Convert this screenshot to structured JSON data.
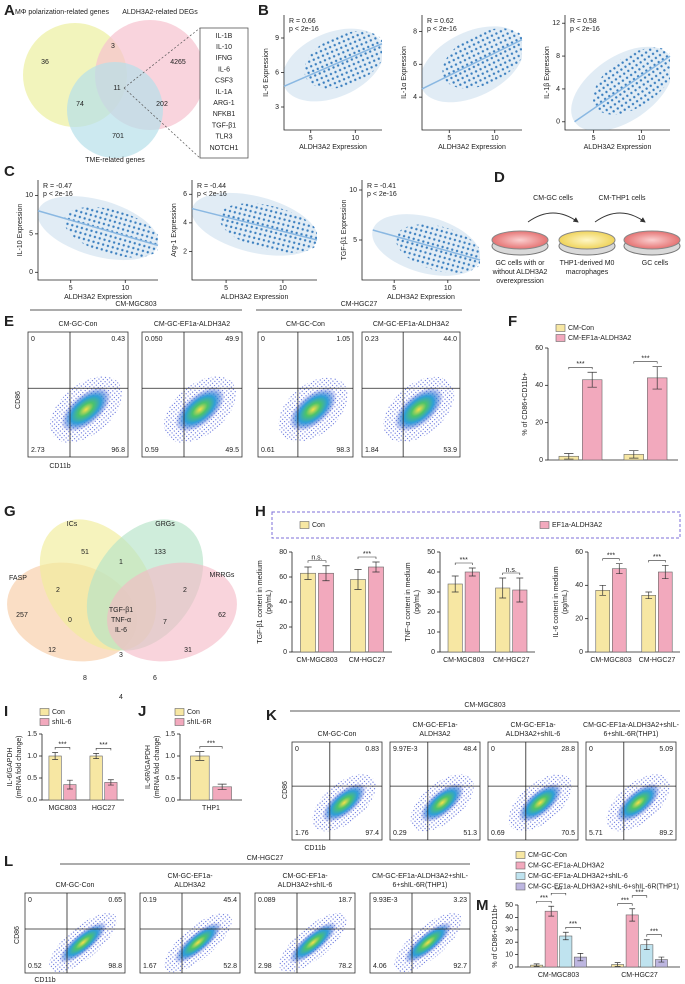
{
  "A": {
    "letter": "A",
    "sets": [
      "MΦ polarization-related genes",
      "ALDH3A2-related DEGs",
      "TME-related genes"
    ],
    "counts": [
      36,
      3,
      4265,
      74,
      11,
      202,
      701
    ],
    "genes": [
      "IL-1B",
      "IL-10",
      "IFNG",
      "IL-6",
      "CSF3",
      "IL-1A",
      "ARG-1",
      "NFKB1",
      "TGF-β1",
      "TLR3",
      "NOTCH1"
    ],
    "gene_colors": [
      "#e8262a",
      "#e8262a",
      "#222",
      "#e8262a",
      "#222",
      "#e8262a",
      "#e8262a",
      "#222",
      "#e8262a",
      "#222",
      "#222"
    ]
  },
  "B": {
    "letter": "B",
    "plots": [
      {
        "stat": [
          "R = 0.66",
          "p < 2e-16"
        ],
        "ylabel": "IL-6 Expression",
        "xlabel": "ALDH3A2 Expression",
        "xlim": [
          2,
          13
        ],
        "ylim": [
          1,
          11
        ],
        "xticks": [
          5,
          10
        ],
        "yticks": [
          3,
          6,
          9
        ],
        "fit": [
          [
            2,
            4.8
          ],
          [
            13,
            8.5
          ]
        ]
      },
      {
        "stat": [
          "R = 0.62",
          "p < 2e-16"
        ],
        "ylabel": "IL-1α Expression",
        "xlabel": "ALDH3A2 Expression",
        "xlim": [
          2,
          13
        ],
        "ylim": [
          2,
          9
        ],
        "xticks": [
          5,
          10
        ],
        "yticks": [
          4,
          6,
          8
        ],
        "fit": [
          [
            2,
            4.5
          ],
          [
            13,
            7.5
          ]
        ]
      },
      {
        "stat": [
          "R = 0.58",
          "p < 2e-16"
        ],
        "ylabel": "IL-1β Expression",
        "xlabel": "ALDH3A2 Expression",
        "xlim": [
          2,
          13
        ],
        "ylim": [
          -1,
          13
        ],
        "xticks": [
          5,
          10
        ],
        "yticks": [
          0,
          4,
          8,
          12
        ],
        "fit": [
          [
            3,
            0
          ],
          [
            13,
            8
          ]
        ]
      }
    ]
  },
  "C": {
    "letter": "C",
    "plots": [
      {
        "stat": [
          "R = -0.47",
          "p < 2e-16"
        ],
        "ylabel": "IL-10 Expression",
        "xlabel": "ALDH3A2 Expression",
        "xlim": [
          2,
          13
        ],
        "ylim": [
          -1,
          12
        ],
        "xticks": [
          5,
          10
        ],
        "yticks": [
          0,
          5,
          10
        ],
        "fit": [
          [
            2,
            8
          ],
          [
            13,
            3.5
          ]
        ]
      },
      {
        "stat": [
          "R = -0.44",
          "p < 2e-16"
        ],
        "ylabel": "Arg-1 Expression",
        "xlabel": "ALDH3A2 Expression",
        "xlim": [
          2,
          13
        ],
        "ylim": [
          0,
          7
        ],
        "xticks": [
          5,
          10
        ],
        "yticks": [
          2,
          4,
          6
        ],
        "fit": [
          [
            2,
            5
          ],
          [
            13,
            2.8
          ]
        ]
      },
      {
        "stat": [
          "R = -0.41",
          "p < 2e-16"
        ],
        "ylabel": "TGF-β1 Expression",
        "xlabel": "ALDH3A2 Expression",
        "xlim": [
          2,
          13
        ],
        "ylim": [
          1,
          11
        ],
        "xticks": [
          5,
          10
        ],
        "yticks": [
          5,
          10
        ],
        "fit": [
          [
            3,
            6
          ],
          [
            13,
            3
          ]
        ]
      }
    ]
  },
  "D": {
    "letter": "D",
    "steps": [
      "CM-GC cells",
      "CM-THP1 cells"
    ],
    "dish_labels": [
      [
        "GC cells with or",
        "without ALDH3A2",
        "overexpression"
      ],
      [
        "THP1-derived M0",
        "macrophages"
      ],
      [
        "GC cells"
      ]
    ]
  },
  "E": {
    "letter": "E",
    "groups": [
      "CM-MGC803",
      "CM-HGC27"
    ],
    "ylabel": "CD86",
    "xlabel": "CD11b",
    "plots": [
      {
        "title": [
          "CM-GC-Con"
        ],
        "q": [
          "0",
          "0.43",
          "2.73",
          "96.8"
        ]
      },
      {
        "title": [
          "CM-GC-EF1a-ALDH3A2"
        ],
        "q": [
          "0.050",
          "49.9",
          "0.59",
          "49.5"
        ]
      },
      {
        "title": [
          "CM-GC-Con"
        ],
        "q": [
          "0",
          "1.05",
          "0.61",
          "98.3"
        ]
      },
      {
        "title": [
          "CM-GC-EF1a-ALDH3A2"
        ],
        "q": [
          "0.23",
          "44.0",
          "1.84",
          "53.9"
        ]
      }
    ]
  },
  "F": {
    "letter": "F",
    "legend": [
      "CM-Con",
      "CM-EF1a-ALDH3A2"
    ],
    "colors": [
      "#f7e7a3",
      "#f2a9bd"
    ],
    "charts": [
      {
        "ylabel": [
          "% of CD86+CD11b+"
        ],
        "categories": [
          null,
          null
        ],
        "values": [
          [
            2,
            3
          ],
          [
            43,
            44
          ]
        ],
        "errors": [
          [
            1.5,
            2
          ],
          [
            4,
            6
          ]
        ],
        "ylim": [
          0,
          60
        ],
        "yticks": [
          0,
          20,
          40,
          60
        ],
        "sig": [
          [
            "***"
          ],
          [
            "***"
          ]
        ]
      }
    ]
  },
  "G": {
    "letter": "G",
    "sets": [
      "ICs",
      "GRGs",
      "FASP",
      "MRRGs"
    ],
    "counts": [
      51,
      1,
      133,
      2,
      2,
      257,
      0,
      7,
      62,
      3,
      12,
      31,
      8,
      6,
      4
    ],
    "center": [
      "TGF-β1",
      "TNF-α",
      "IL-6"
    ]
  },
  "H": {
    "letter": "H",
    "legend": [
      "Con",
      "EF1a-ALDH3A2"
    ],
    "colors": [
      "#f7e7a3",
      "#f2a9bd"
    ],
    "charts": [
      {
        "ylabel": [
          "TGF-β1 content in medium",
          "(pg/mL)"
        ],
        "categories": [
          "CM-MGC803",
          "CM-HGC27"
        ],
        "values": [
          [
            63,
            58
          ],
          [
            63,
            68
          ]
        ],
        "errors": [
          [
            5,
            8
          ],
          [
            6,
            4
          ]
        ],
        "ylim": [
          0,
          80
        ],
        "yticks": [
          0,
          20,
          40,
          60,
          80
        ],
        "sig": [
          [
            "n.s."
          ],
          [
            "***"
          ]
        ]
      },
      {
        "ylabel": [
          "TNF-α content in medium",
          "(pg/mL)"
        ],
        "categories": [
          "CM-MGC803",
          "CM-HGC27"
        ],
        "values": [
          [
            34,
            32
          ],
          [
            40,
            31
          ]
        ],
        "errors": [
          [
            4,
            5
          ],
          [
            2,
            6
          ]
        ],
        "ylim": [
          0,
          50
        ],
        "yticks": [
          0,
          10,
          20,
          30,
          40,
          50
        ],
        "sig": [
          [
            "***"
          ],
          [
            "n.s."
          ]
        ]
      },
      {
        "ylabel": [
          "IL-6 content in medium",
          "(pg/mL)"
        ],
        "categories": [
          "CM-MGC803",
          "CM-HGC27"
        ],
        "values": [
          [
            37,
            34
          ],
          [
            50,
            48
          ]
        ],
        "errors": [
          [
            3,
            2
          ],
          [
            3,
            4
          ]
        ],
        "ylim": [
          0,
          60
        ],
        "yticks": [
          0,
          20,
          40,
          60
        ],
        "sig": [
          [
            "***"
          ],
          [
            "***"
          ]
        ]
      }
    ]
  },
  "I": {
    "letter": "I",
    "legend": [
      "Con",
      "shIL-6"
    ],
    "colors": [
      "#f7e7a3",
      "#f2a9bd"
    ],
    "charts": [
      {
        "ylabel": [
          "IL-6/GAPDH",
          "(mRNA fold change)"
        ],
        "categories": [
          "MGC803",
          "HGC27"
        ],
        "values": [
          [
            1.0,
            1.0
          ],
          [
            0.35,
            0.4
          ]
        ],
        "errors": [
          [
            0.08,
            0.06
          ],
          [
            0.1,
            0.06
          ]
        ],
        "ylim": [
          0,
          1.5
        ],
        "yticks": [
          {
            "value": 0,
            "label": "0.0"
          },
          0.5,
          {
            "value": 1,
            "label": "1.0"
          },
          1.5
        ],
        "sig": [
          [
            "***"
          ],
          [
            "***"
          ]
        ]
      }
    ]
  },
  "J": {
    "letter": "J",
    "legend": [
      "Con",
      "shIL-6R"
    ],
    "colors": [
      "#f7e7a3",
      "#f2a9bd"
    ],
    "charts": [
      {
        "ylabel": [
          "IL-6R/GAPDH",
          "(mRNA fold change)"
        ],
        "categories": [
          "THP1"
        ],
        "values": [
          [
            1.0
          ],
          [
            0.3
          ]
        ],
        "errors": [
          [
            0.1
          ],
          [
            0.06
          ]
        ],
        "ylim": [
          0,
          1.5
        ],
        "yticks": [
          {
            "value": 0,
            "label": "0.0"
          },
          0.5,
          {
            "value": 1,
            "label": "1.0"
          },
          1.5
        ],
        "sig": [
          [
            "***"
          ]
        ]
      }
    ]
  },
  "K": {
    "letter": "K",
    "group": "CM-MGC803",
    "ylabel": "CD86",
    "xlabel": "CD11b",
    "plots": [
      {
        "title": [
          "CM-GC-Con"
        ],
        "q": [
          "0",
          "0.83",
          "1.76",
          "97.4"
        ]
      },
      {
        "title": [
          "CM-GC-EF1a-",
          "ALDH3A2"
        ],
        "q": [
          "9.97E-3",
          "48.4",
          "0.29",
          "51.3"
        ]
      },
      {
        "title": [
          "CM-GC-EF1a-",
          "ALDH3A2+shIL-6"
        ],
        "q": [
          "0",
          "28.8",
          "0.69",
          "70.5"
        ]
      },
      {
        "title": [
          "CM-GC-EF1a-ALDH3A2+shIL-",
          "6+shIL-6R(THP1)"
        ],
        "q": [
          "0",
          "5.09",
          "5.71",
          "89.2"
        ]
      }
    ]
  },
  "L": {
    "letter": "L",
    "group": "CM-HGC27",
    "ylabel": "CD86",
    "xlabel": "CD11b",
    "plots": [
      {
        "title": [
          "CM-GC-Con"
        ],
        "q": [
          "0",
          "0.65",
          "0.52",
          "98.8"
        ]
      },
      {
        "title": [
          "CM-GC-EF1a-",
          "ALDH3A2"
        ],
        "q": [
          "0.19",
          "45.4",
          "1.67",
          "52.8"
        ]
      },
      {
        "title": [
          "CM-GC-EF1a-",
          "ALDH3A2+shIL-6"
        ],
        "q": [
          "0.089",
          "18.7",
          "2.98",
          "78.2"
        ]
      },
      {
        "title": [
          "CM-GC-EF1a-ALDH3A2+shIL-",
          "6+shIL-6R(THP1)"
        ],
        "q": [
          "9.93E-3",
          "3.23",
          "4.06",
          "92.7"
        ]
      }
    ]
  },
  "M": {
    "letter": "M",
    "legend": [
      "CM-GC-Con",
      "CM-GC-EF1a-ALDH3A2",
      "CM-GC-EF1a-ALDH3A2+shIL-6",
      "CM-GC-EF1a-ALDH3A2+shIL-6+shIL-6R(THP1)"
    ],
    "colors": [
      "#f7e7a3",
      "#f2a9bd",
      "#bfe3ef",
      "#bdb6e0"
    ],
    "charts": [
      {
        "ylabel": [
          "% of CD86+CD11b+"
        ],
        "categories": [
          "CM-MGC803",
          "CM-HGC27"
        ],
        "values": [
          [
            1.5,
            2
          ],
          [
            45,
            42
          ],
          [
            25,
            18
          ],
          [
            8,
            6
          ]
        ],
        "errors": [
          [
            1,
            1.5
          ],
          [
            4,
            5
          ],
          [
            3,
            4
          ],
          [
            3,
            2
          ]
        ],
        "ylim": [
          0,
          50
        ],
        "yticks": [
          0,
          10,
          20,
          30,
          40,
          50
        ],
        "sig": [
          [
            "***",
            "***",
            "***"
          ],
          [
            "***",
            "***",
            "***"
          ]
        ]
      }
    ]
  }
}
